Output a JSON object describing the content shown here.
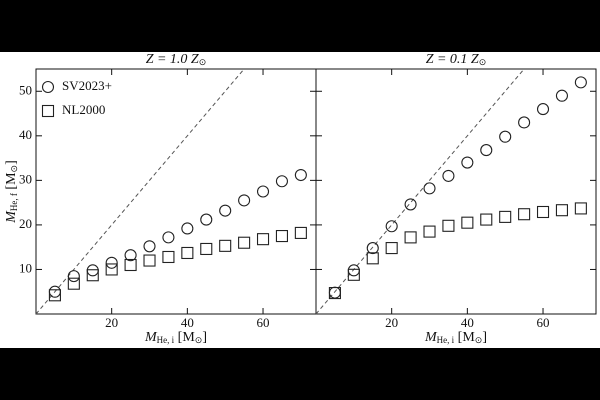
{
  "chart_data": [
    {
      "type": "scatter",
      "title": {
        "main": "Z = 1.0 Z",
        "sub": "⊙"
      },
      "xlabel": {
        "main": "M",
        "sub": "He, i",
        "unit_open": " [M",
        "unit_sub": "⊙",
        "unit_close": "]"
      },
      "ylabel": {
        "main": "M",
        "sub": "He, f",
        "unit_open": " [M",
        "unit_sub": "⊙",
        "unit_close": "]"
      },
      "xlim": [
        0,
        74
      ],
      "ylim": [
        0,
        55
      ],
      "xticks": [
        20,
        40,
        60
      ],
      "yticks": [
        10,
        20,
        30,
        40,
        50
      ],
      "show_ytick_labels": true,
      "identity_line": true,
      "legend": "upper left",
      "x": [
        5,
        10,
        15,
        20,
        25,
        30,
        35,
        40,
        45,
        50,
        55,
        60,
        65,
        70
      ],
      "series": [
        {
          "name": "SV2023+",
          "marker": "circle",
          "color": "#222222",
          "values": [
            5,
            8.5,
            9.8,
            11.5,
            13.2,
            15.2,
            17.2,
            19.2,
            21.2,
            23.2,
            25.5,
            27.5,
            29.8,
            31.2
          ]
        },
        {
          "name": "NL2000",
          "marker": "square",
          "color": "#222222",
          "values": [
            4.2,
            6.8,
            8.7,
            10,
            11,
            12,
            12.8,
            13.7,
            14.6,
            15.3,
            16,
            16.8,
            17.5,
            18.2
          ]
        }
      ]
    },
    {
      "type": "scatter",
      "title": {
        "main": "Z = 0.1 Z",
        "sub": "⊙"
      },
      "xlabel": {
        "main": "M",
        "sub": "He, i",
        "unit_open": " [M",
        "unit_sub": "⊙",
        "unit_close": "]"
      },
      "xlim": [
        0,
        74
      ],
      "ylim": [
        0,
        55
      ],
      "xticks": [
        20,
        40,
        60
      ],
      "yticks": [
        10,
        20,
        30,
        40,
        50
      ],
      "show_ytick_labels": false,
      "identity_line": true,
      "legend": false,
      "x": [
        5,
        10,
        15,
        20,
        25,
        30,
        35,
        40,
        45,
        50,
        55,
        60,
        65,
        70
      ],
      "series": [
        {
          "marker": "circle",
          "color": "#222222",
          "values": [
            4.8,
            9.8,
            14.8,
            19.7,
            24.6,
            28.2,
            31,
            34,
            36.8,
            39.8,
            43,
            46,
            49,
            52
          ]
        },
        {
          "marker": "square",
          "color": "#222222",
          "values": [
            4.7,
            8.8,
            12.5,
            14.8,
            17.2,
            18.5,
            19.8,
            20.5,
            21.2,
            21.8,
            22.4,
            22.9,
            23.3,
            23.7
          ]
        }
      ]
    }
  ]
}
